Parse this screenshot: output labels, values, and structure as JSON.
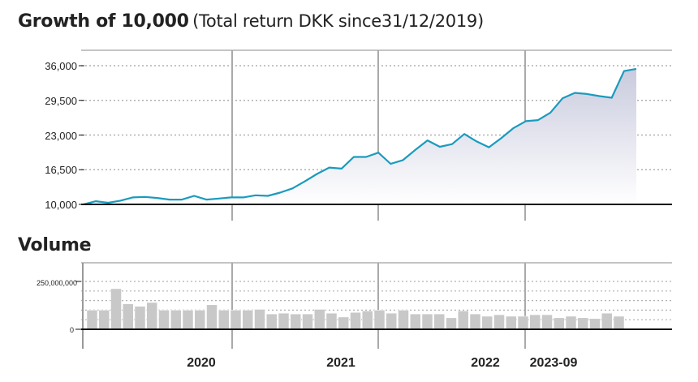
{
  "header": {
    "title": "Growth of 10,000",
    "subtitle": "(Total return DKK since31/12/2019)"
  },
  "volume_section": {
    "title": "Volume"
  },
  "colors": {
    "line": "#1a9bbd",
    "area_top": "#c9cbde",
    "area_bottom": "#ffffff",
    "bars": "#c8c8c8",
    "bar_edge": "#ffffff",
    "grid": "#b0b0b0",
    "axis": "#111111"
  },
  "chart_data": [
    {
      "type": "area",
      "title": "Growth of 10,000",
      "subtitle": "(Total return DKK since31/12/2019)",
      "ylim": [
        10000,
        36000
      ],
      "yticks": [
        "10,000",
        "16,500",
        "23,000",
        "29,500",
        "36,000"
      ],
      "ytick_values": [
        10000,
        16500,
        23000,
        29500,
        36000
      ],
      "grid": true,
      "series": [
        {
          "values": [
            10000,
            10600,
            10300,
            10700,
            11300,
            11400,
            11200,
            10900,
            10900,
            11600,
            10900,
            11100,
            11300,
            11300,
            11700,
            11600,
            12200,
            13000,
            14300,
            15700,
            16900,
            16700,
            18900,
            18900,
            19700,
            17600,
            18300,
            20200,
            22000,
            20800,
            21300,
            23200,
            21800,
            20700,
            22400,
            24300,
            25600,
            25800,
            27200,
            29900,
            30900,
            30700,
            30300,
            30000,
            35000,
            35400
          ]
        }
      ]
    },
    {
      "type": "bar",
      "title": "Volume",
      "ylim": [
        0,
        250000000
      ],
      "yticks": [
        "0",
        "250,000,000"
      ],
      "ytick_values": [
        0,
        250000000
      ],
      "grid": true,
      "series": [
        {
          "values": [
            100000000,
            100000000,
            212000000,
            133000000,
            120000000,
            140000000,
            100000000,
            100000000,
            100000000,
            100000000,
            128000000,
            100000000,
            100000000,
            100000000,
            104000000,
            80000000,
            84000000,
            80000000,
            80000000,
            104000000,
            84000000,
            64000000,
            88000000,
            96000000,
            100000000,
            84000000,
            100000000,
            80000000,
            80000000,
            80000000,
            60000000,
            96000000,
            80000000,
            68000000,
            76000000,
            68000000,
            68000000,
            76000000,
            76000000,
            60000000,
            68000000,
            60000000,
            56000000,
            84000000,
            68000000
          ]
        }
      ]
    },
    {
      "type": "table",
      "xaxis_labels": [
        "2020",
        "2021",
        "2022",
        "2023-09"
      ]
    }
  ]
}
